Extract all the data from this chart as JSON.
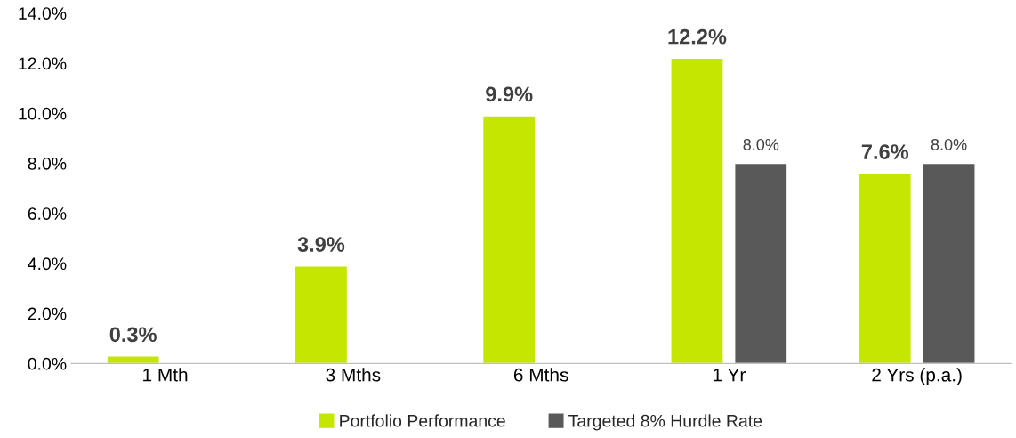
{
  "chart_data": {
    "type": "bar",
    "categories": [
      "1 Mth",
      "3 Mths",
      "6 Mths",
      "1 Yr",
      "2 Yrs (p.a.)"
    ],
    "series": [
      {
        "name": "Portfolio Performance",
        "color": "#c5e600",
        "values": [
          0.3,
          3.9,
          9.9,
          12.2,
          7.6
        ],
        "value_labels": [
          "0.3%",
          "3.9%",
          "9.9%",
          "12.2%",
          "7.6%"
        ]
      },
      {
        "name": "Targeted 8% Hurdle Rate",
        "color": "#595959",
        "values": [
          null,
          null,
          null,
          8.0,
          8.0
        ],
        "value_labels": [
          null,
          null,
          null,
          "8.0%",
          "8.0%"
        ]
      }
    ],
    "ylim": [
      0,
      14
    ],
    "yticks": [
      {
        "value": 0,
        "label": "0.0%"
      },
      {
        "value": 2,
        "label": "2.0%"
      },
      {
        "value": 4,
        "label": "4.0%"
      },
      {
        "value": 6,
        "label": "6.0%"
      },
      {
        "value": 8,
        "label": "8.0%"
      },
      {
        "value": 10,
        "label": "10.0%"
      },
      {
        "value": 12,
        "label": "12.0%"
      },
      {
        "value": 14,
        "label": "14.0%"
      }
    ],
    "grid": false,
    "legend": "bottom"
  }
}
